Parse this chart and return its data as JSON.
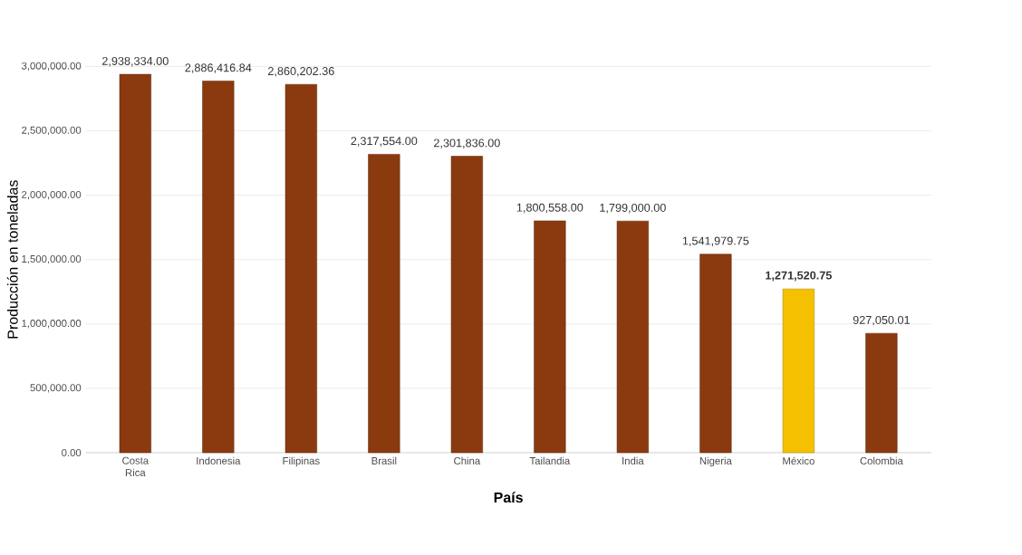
{
  "chart_data": {
    "type": "bar",
    "xlabel": "País",
    "ylabel": "Producción en toneladas",
    "categories": [
      "Costa Rica",
      "Indonesia",
      "Filipinas",
      "Brasil",
      "China",
      "Tailandia",
      "India",
      "Nigeria",
      "México",
      "Colombia"
    ],
    "values": [
      2938334.0,
      2886416.84,
      2860202.36,
      2317554.0,
      2301836.0,
      1800558.0,
      1799000.0,
      1541979.75,
      1271520.75,
      927050.01
    ],
    "value_labels": [
      "2,938,334.00",
      "2,886,416.84",
      "2,860,202.36",
      "2,317,554.00",
      "2,301,836.00",
      "1,800,558.00",
      "1,799,000.00",
      "1,541,979.75",
      "**1,271,520.75**",
      "927,050.01"
    ],
    "colors": [
      "#8b3a0f",
      "#8b3a0f",
      "#8b3a0f",
      "#8b3a0f",
      "#8b3a0f",
      "#8b3a0f",
      "#8b3a0f",
      "#8b3a0f",
      "#f5c000",
      "#8b3a0f"
    ],
    "ylim": [
      0,
      3000000
    ],
    "yticks": [
      {
        "value": 0,
        "label": "0.00"
      },
      {
        "value": 500000,
        "label": "500,000.00"
      },
      {
        "value": 1000000,
        "label": "1,000,000.00"
      },
      {
        "value": 1500000,
        "label": "1,500,000.00"
      },
      {
        "value": 2000000,
        "label": "2,000,000.00"
      },
      {
        "value": 2500000,
        "label": "2,500,000.00"
      },
      {
        "value": 3000000,
        "label": "3,000,000.00"
      }
    ],
    "grid": "y"
  }
}
